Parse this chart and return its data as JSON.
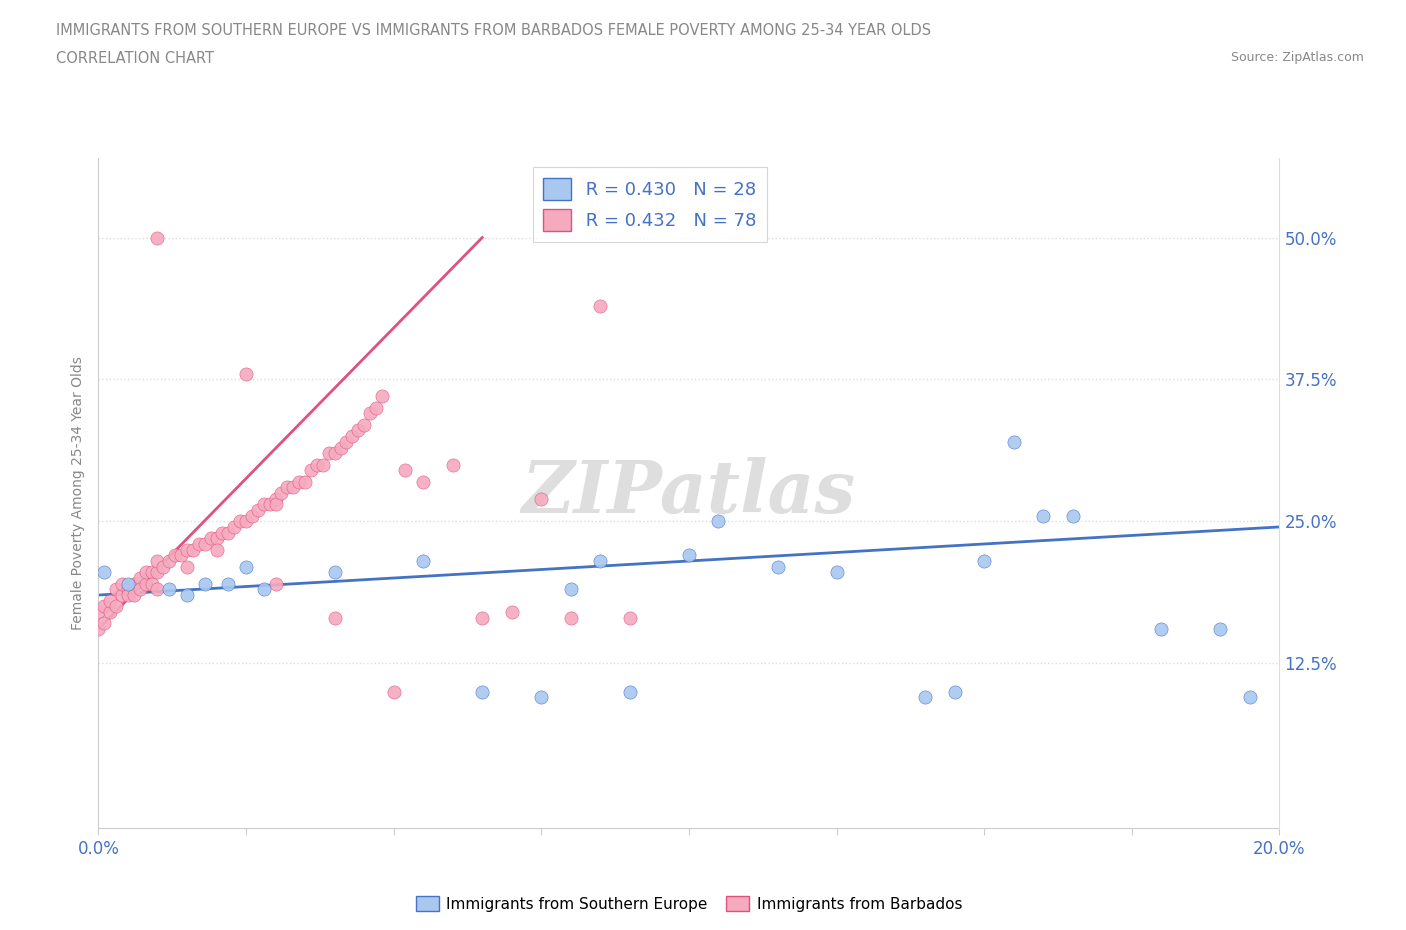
{
  "title_line1": "IMMIGRANTS FROM SOUTHERN EUROPE VS IMMIGRANTS FROM BARBADOS FEMALE POVERTY AMONG 25-34 YEAR OLDS",
  "title_line2": "CORRELATION CHART",
  "source_text": "Source: ZipAtlas.com",
  "ylabel": "Female Poverty Among 25-34 Year Olds",
  "watermark": "ZIPatlas",
  "legend_r1": "R = 0.430",
  "legend_n1": "N = 28",
  "legend_r2": "R = 0.432",
  "legend_n2": "N = 78",
  "xlim": [
    0.0,
    0.2
  ],
  "ylim": [
    -0.02,
    0.57
  ],
  "xtick_positions": [
    0.0,
    0.025,
    0.05,
    0.075,
    0.1,
    0.125,
    0.15,
    0.175,
    0.2
  ],
  "ytick_positions": [
    0.125,
    0.25,
    0.375,
    0.5
  ],
  "ytick_labels": [
    "12.5%",
    "25.0%",
    "37.5%",
    "50.0%"
  ],
  "color_blue": "#A8C8F0",
  "color_pink": "#F5AABE",
  "color_blue_line": "#4472C4",
  "color_pink_line": "#E05080",
  "blue_scatter_x": [
    0.001,
    0.005,
    0.012,
    0.015,
    0.018,
    0.022,
    0.025,
    0.028,
    0.04,
    0.055,
    0.065,
    0.075,
    0.08,
    0.085,
    0.09,
    0.1,
    0.105,
    0.115,
    0.125,
    0.14,
    0.145,
    0.15,
    0.155,
    0.16,
    0.165,
    0.18,
    0.19,
    0.195
  ],
  "blue_scatter_y": [
    0.205,
    0.195,
    0.19,
    0.185,
    0.195,
    0.195,
    0.21,
    0.19,
    0.205,
    0.215,
    0.1,
    0.095,
    0.19,
    0.215,
    0.1,
    0.22,
    0.25,
    0.21,
    0.205,
    0.095,
    0.1,
    0.215,
    0.32,
    0.255,
    0.255,
    0.155,
    0.155,
    0.095
  ],
  "pink_scatter_x": [
    0.0,
    0.0,
    0.001,
    0.001,
    0.002,
    0.002,
    0.003,
    0.003,
    0.004,
    0.004,
    0.005,
    0.005,
    0.006,
    0.006,
    0.007,
    0.007,
    0.008,
    0.008,
    0.009,
    0.009,
    0.01,
    0.01,
    0.01,
    0.011,
    0.012,
    0.013,
    0.014,
    0.015,
    0.015,
    0.016,
    0.017,
    0.018,
    0.019,
    0.02,
    0.02,
    0.021,
    0.022,
    0.023,
    0.024,
    0.025,
    0.026,
    0.027,
    0.028,
    0.029,
    0.03,
    0.03,
    0.031,
    0.032,
    0.033,
    0.034,
    0.035,
    0.036,
    0.037,
    0.038,
    0.039,
    0.04,
    0.041,
    0.042,
    0.043,
    0.044,
    0.045,
    0.046,
    0.047,
    0.048,
    0.05,
    0.052,
    0.055,
    0.06,
    0.065,
    0.07,
    0.075,
    0.08,
    0.085,
    0.09,
    0.01,
    0.025,
    0.03,
    0.04
  ],
  "pink_scatter_y": [
    0.155,
    0.17,
    0.16,
    0.175,
    0.17,
    0.18,
    0.175,
    0.19,
    0.185,
    0.195,
    0.19,
    0.185,
    0.195,
    0.185,
    0.2,
    0.19,
    0.195,
    0.205,
    0.205,
    0.195,
    0.205,
    0.19,
    0.215,
    0.21,
    0.215,
    0.22,
    0.22,
    0.225,
    0.21,
    0.225,
    0.23,
    0.23,
    0.235,
    0.235,
    0.225,
    0.24,
    0.24,
    0.245,
    0.25,
    0.25,
    0.255,
    0.26,
    0.265,
    0.265,
    0.27,
    0.265,
    0.275,
    0.28,
    0.28,
    0.285,
    0.285,
    0.295,
    0.3,
    0.3,
    0.31,
    0.31,
    0.315,
    0.32,
    0.325,
    0.33,
    0.335,
    0.345,
    0.35,
    0.36,
    0.1,
    0.295,
    0.285,
    0.3,
    0.165,
    0.17,
    0.27,
    0.165,
    0.44,
    0.165,
    0.5,
    0.38,
    0.195,
    0.165
  ],
  "blue_trend_x": [
    0.0,
    0.2
  ],
  "blue_trend_y": [
    0.185,
    0.245
  ],
  "pink_trend_x": [
    0.0,
    0.065
  ],
  "pink_trend_y": [
    0.155,
    0.5
  ],
  "background_color": "#FFFFFF",
  "grid_color": "#DDDDDD",
  "title_color": "#888888",
  "axis_label_color": "#888888",
  "tick_color": "#4472C4",
  "watermark_color": "#DEDEDE"
}
